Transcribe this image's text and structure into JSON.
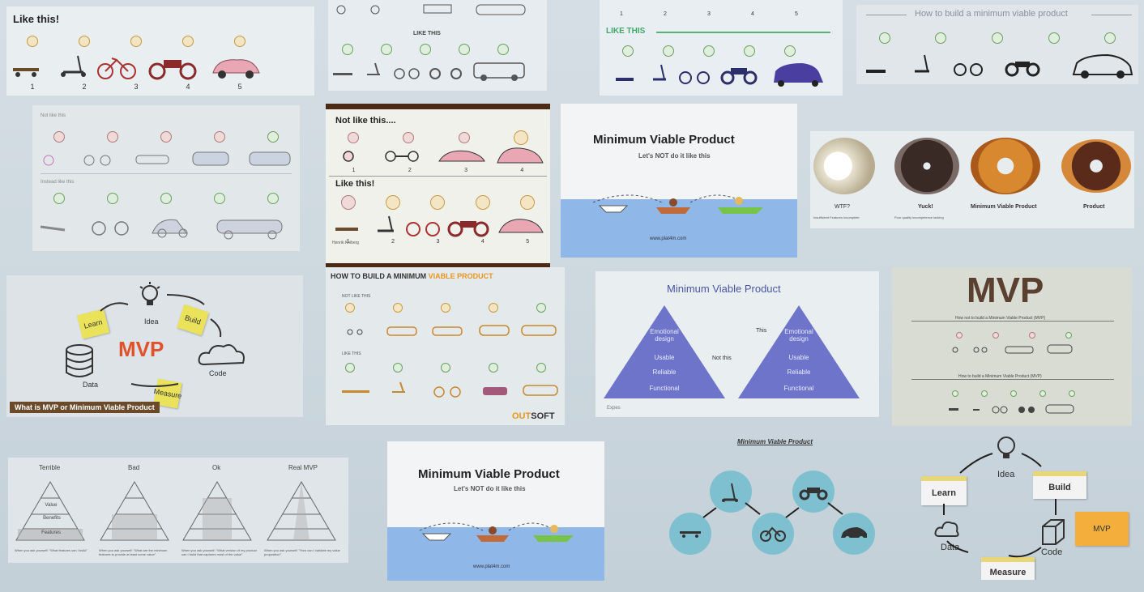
{
  "tiles": {
    "like_this_top": {
      "title": "Like this!",
      "numbers": [
        "1",
        "2",
        "3",
        "4",
        "5"
      ]
    },
    "top_strip": {
      "label": "LIKE THIS"
    },
    "like_this_green": {
      "label": "LIKE THIS",
      "numbers": [
        "1",
        "2",
        "3",
        "4",
        "5"
      ]
    },
    "how_to_build": {
      "title": "How to build a minimum viable product"
    },
    "not_like_this_strip": {
      "label1": "Not like this",
      "label2": "Instead like this"
    },
    "not_like_like": {
      "not_label": "Not like this....",
      "like_label": "Like this!",
      "numbers": [
        "1",
        "2",
        "3",
        "4"
      ],
      "numbers2": [
        "1",
        "2",
        "3",
        "4",
        "5"
      ],
      "credit": "Henrik Kniberg"
    },
    "mvp_boat1": {
      "title": "Minimum Viable Product",
      "subtitle": "Let's NOT do it like this",
      "url": "www.plat4m.com"
    },
    "donuts": {
      "labels": [
        "WTF?",
        "Yuck!",
        "Minimum Viable Product",
        "Product"
      ],
      "sub1": "Insufficient Features Incomplete",
      "sub2": "Poor quality incompetence lacking"
    },
    "mvp_cycle_left": {
      "center": "MVP",
      "idea": "Idea",
      "build": "Build",
      "code": "Code",
      "measure": "Measure",
      "data": "Data",
      "learn": "Learn",
      "caption": "What is MVP or Minimum Viable Product"
    },
    "outsoft": {
      "title_part1": "HOW TO BUILD A MINIMUM ",
      "title_part2": "VIABLE PRODUCT",
      "not": "NOT LIKE THIS",
      "like": "LIKE THIS",
      "brand_part1": "OUT",
      "brand_part2": "SOFT"
    },
    "pyramid": {
      "title": "Minimum Viable Product",
      "layers": [
        "Emotional design",
        "Usable",
        "Reliable",
        "Functional"
      ],
      "not_this": "Not this",
      "this": "This",
      "brand": "Expes"
    },
    "mvp_big": {
      "title": "MVP",
      "not": "How not to build a Minimum Viable Product (MVP)",
      "how": "How to build a Minimum Viable Product (MVP)"
    },
    "small_pyramids": {
      "labels": [
        "Terrible",
        "Bad",
        "Ok",
        "Real MVP"
      ],
      "layers": [
        "Value",
        "Benefits",
        "Features"
      ],
      "captions": [
        "When you ask yourself: \"What features can I build\"",
        "When you ask yourself: \"What are the minimum features to provide at least some value\"",
        "When you ask yourself: \"What version of my product can I build that captures most of the value\"",
        "When you ask yourself: \"How can I validate my value proposition\""
      ]
    },
    "mvp_boat2": {
      "title": "Minimum Viable Product",
      "subtitle": "Let's NOT do it like this",
      "url": "www.plat4m.com"
    },
    "circles_flow": {
      "title": "Minimum Viable Product"
    },
    "cycle_right": {
      "idea": "Idea",
      "build": "Build",
      "code": "Code",
      "measure": "Measure",
      "data": "Data",
      "learn": "Learn",
      "mvp": "MVP"
    }
  },
  "colors": {
    "pyramid": "#6e74c9",
    "mvp_orange": "#e0522a",
    "water": "#8fb7e8",
    "circle": "#7fc0d0",
    "sticky": "#e9e25a"
  }
}
